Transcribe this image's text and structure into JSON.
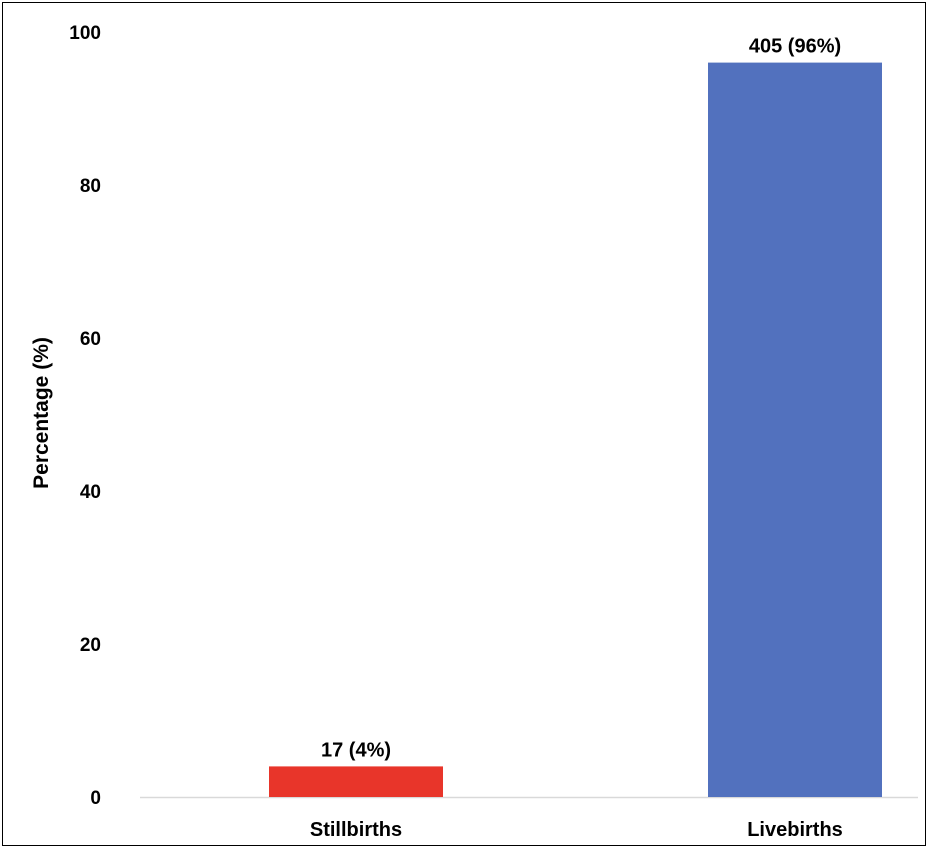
{
  "chart_data": {
    "type": "bar",
    "title": "",
    "xlabel": "",
    "ylabel": "Percentage (%)",
    "ylim": [
      0,
      100
    ],
    "yticks": [
      0,
      20,
      40,
      60,
      80,
      100
    ],
    "grid": false,
    "categories": [
      "Stillbirths",
      "Livebirths"
    ],
    "values": [
      4,
      96
    ],
    "data_labels": [
      "17 (4%)",
      "405 (96%)"
    ],
    "colors": [
      "#E8352A",
      "#5271BE"
    ],
    "axis_color": "#D9D9D9"
  }
}
